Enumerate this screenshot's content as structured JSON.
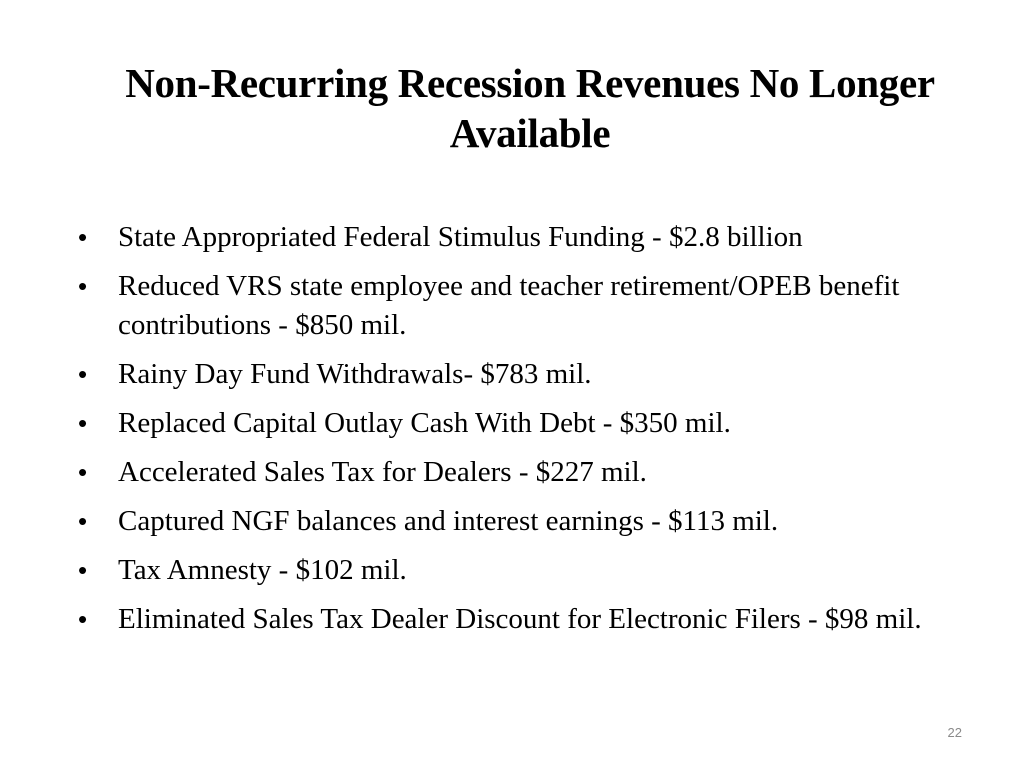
{
  "slide": {
    "title": "Non-Recurring Recession Revenues No Longer Available",
    "bullet_glyph": "•",
    "bullets": [
      "State Appropriated Federal Stimulus Funding - $2.8 billion",
      "Reduced VRS state employee and teacher retirement/OPEB benefit contributions - $850 mil.",
      "Rainy Day Fund Withdrawals- $783 mil.",
      "Replaced Capital Outlay Cash With Debt - $350 mil.",
      "Accelerated Sales Tax for Dealers - $227 mil.",
      "Captured NGF balances and interest earnings - $113 mil.",
      "Tax Amnesty - $102 mil.",
      "Eliminated Sales Tax Dealer Discount for Electronic Filers - $98 mil."
    ],
    "page_number": "22"
  }
}
